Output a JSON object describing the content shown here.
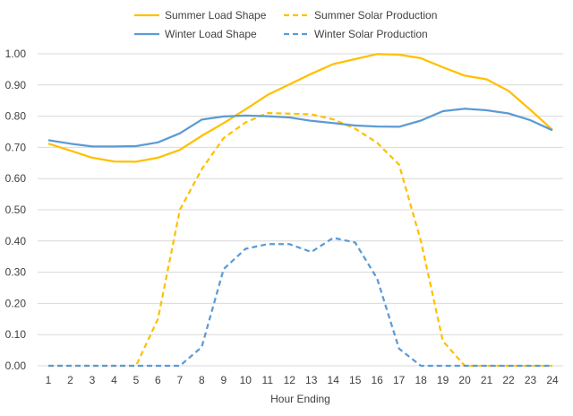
{
  "chart_data": {
    "type": "line",
    "xlabel": "Hour Ending",
    "ylabel": "",
    "title": "",
    "x": [
      1,
      2,
      3,
      4,
      5,
      6,
      7,
      8,
      9,
      10,
      11,
      12,
      13,
      14,
      15,
      16,
      17,
      18,
      19,
      20,
      21,
      22,
      23,
      24
    ],
    "ylim": [
      0,
      1.0
    ],
    "yticks": [
      "0.00",
      "0.10",
      "0.20",
      "0.30",
      "0.40",
      "0.50",
      "0.60",
      "0.70",
      "0.80",
      "0.90",
      "1.00"
    ],
    "grid": true,
    "legend_position": "top",
    "series": [
      {
        "name": "Summer Load Shape",
        "color": "#FFC000",
        "dash": "solid",
        "values": [
          0.712,
          0.69,
          0.667,
          0.655,
          0.654,
          0.667,
          0.692,
          0.737,
          0.778,
          0.822,
          0.868,
          0.902,
          0.936,
          0.967,
          0.983,
          0.999,
          0.997,
          0.986,
          0.957,
          0.93,
          0.918,
          0.881,
          0.82,
          0.756
        ]
      },
      {
        "name": "Summer Solar Production",
        "color": "#FFC000",
        "dash": "dashed",
        "values": [
          0.0,
          0.0,
          0.0,
          0.0,
          0.0,
          0.15,
          0.5,
          0.63,
          0.73,
          0.78,
          0.81,
          0.808,
          0.806,
          0.79,
          0.76,
          0.715,
          0.645,
          0.4,
          0.08,
          0.0,
          0.0,
          0.0,
          0.0,
          0.0
        ]
      },
      {
        "name": "Winter Load Shape",
        "color": "#5B9BD5",
        "dash": "solid",
        "values": [
          0.723,
          0.712,
          0.703,
          0.703,
          0.704,
          0.716,
          0.745,
          0.789,
          0.799,
          0.802,
          0.8,
          0.796,
          0.785,
          0.778,
          0.77,
          0.767,
          0.766,
          0.786,
          0.816,
          0.824,
          0.819,
          0.809,
          0.787,
          0.755
        ]
      },
      {
        "name": "Winter Solar Production",
        "color": "#5B9BD5",
        "dash": "dashed",
        "values": [
          0.0,
          0.0,
          0.0,
          0.0,
          0.0,
          0.0,
          0.0,
          0.06,
          0.31,
          0.375,
          0.39,
          0.39,
          0.365,
          0.41,
          0.395,
          0.28,
          0.055,
          0.0,
          0.0,
          0.0,
          0.0,
          0.0,
          0.0,
          0.0
        ]
      }
    ]
  }
}
